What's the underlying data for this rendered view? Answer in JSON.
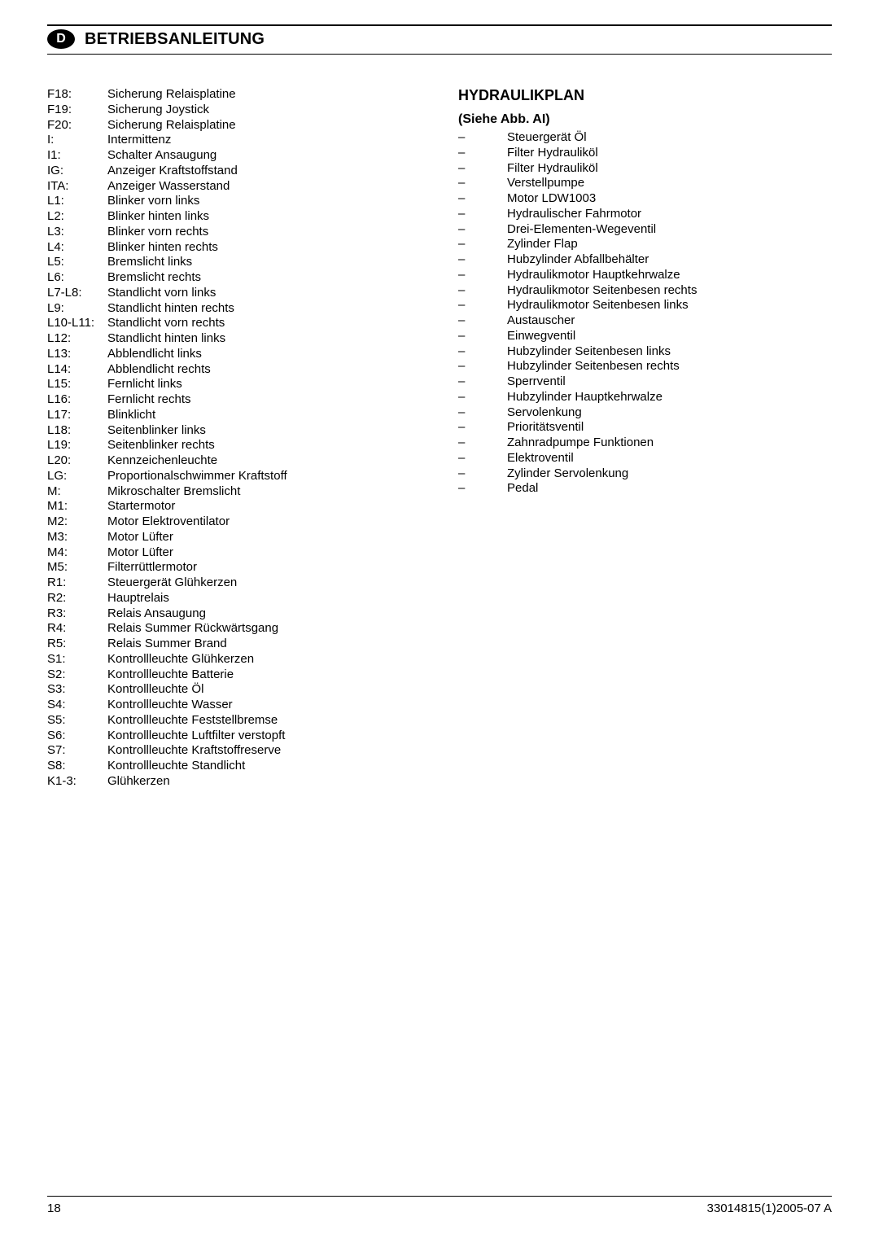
{
  "header": {
    "lang_letter": "D",
    "title": "BETRIEBSANLEITUNG"
  },
  "left_legend": [
    {
      "key": "F18:",
      "val": "Sicherung Relaisplatine"
    },
    {
      "key": "F19:",
      "val": "Sicherung Joystick"
    },
    {
      "key": "F20:",
      "val": "Sicherung Relaisplatine"
    },
    {
      "key": "I:",
      "val": "Intermittenz"
    },
    {
      "key": "I1:",
      "val": "Schalter Ansaugung"
    },
    {
      "key": "IG:",
      "val": "Anzeiger Kraftstoffstand"
    },
    {
      "key": "ITA:",
      "val": "Anzeiger Wasserstand"
    },
    {
      "key": "L1:",
      "val": "Blinker vorn links"
    },
    {
      "key": "L2:",
      "val": "Blinker hinten links"
    },
    {
      "key": "L3:",
      "val": "Blinker vorn rechts"
    },
    {
      "key": "L4:",
      "val": "Blinker hinten rechts"
    },
    {
      "key": "L5:",
      "val": "Bremslicht links"
    },
    {
      "key": "L6:",
      "val": "Bremslicht rechts"
    },
    {
      "key": "L7-L8:",
      "val": "Standlicht vorn links"
    },
    {
      "key": "L9:",
      "val": "Standlicht hinten rechts"
    },
    {
      "key": "L10-L11:",
      "val": "Standlicht vorn rechts"
    },
    {
      "key": "L12:",
      "val": "Standlicht hinten links"
    },
    {
      "key": "L13:",
      "val": "Abblendlicht links"
    },
    {
      "key": "L14:",
      "val": "Abblendlicht rechts"
    },
    {
      "key": "L15:",
      "val": "Fernlicht links"
    },
    {
      "key": "L16:",
      "val": "Fernlicht rechts"
    },
    {
      "key": "L17:",
      "val": "Blinklicht"
    },
    {
      "key": "L18:",
      "val": "Seitenblinker links"
    },
    {
      "key": "L19:",
      "val": "Seitenblinker rechts"
    },
    {
      "key": "L20:",
      "val": "Kennzeichenleuchte"
    },
    {
      "key": "LG:",
      "val": "Proportionalschwimmer Kraftstoff"
    },
    {
      "key": "M:",
      "val": "Mikroschalter Bremslicht"
    },
    {
      "key": "M1:",
      "val": "Startermotor"
    },
    {
      "key": "M2:",
      "val": "Motor Elektroventilator"
    },
    {
      "key": "M3:",
      "val": "Motor Lüfter"
    },
    {
      "key": "M4:",
      "val": "Motor Lüfter"
    },
    {
      "key": "M5:",
      "val": "Filterrüttlermotor"
    },
    {
      "key": "R1:",
      "val": "Steuergerät Glühkerzen"
    },
    {
      "key": "R2:",
      "val": "Hauptrelais"
    },
    {
      "key": "R3:",
      "val": "Relais Ansaugung"
    },
    {
      "key": "R4:",
      "val": "Relais Summer Rückwärtsgang"
    },
    {
      "key": "R5:",
      "val": "Relais Summer Brand"
    },
    {
      "key": "S1:",
      "val": "Kontrollleuchte Glühkerzen"
    },
    {
      "key": "S2:",
      "val": "Kontrollleuchte Batterie"
    },
    {
      "key": "S3:",
      "val": "Kontrollleuchte Öl"
    },
    {
      "key": "S4:",
      "val": "Kontrollleuchte Wasser"
    },
    {
      "key": "S5:",
      "val": "Kontrollleuchte Feststellbremse"
    },
    {
      "key": "S6:",
      "val": "Kontrollleuchte Luftfilter verstopft"
    },
    {
      "key": "S7:",
      "val": "Kontrollleuchte Kraftstoffreserve"
    },
    {
      "key": "S8:",
      "val": "Kontrollleuchte Standlicht"
    },
    {
      "key": "K1-3:",
      "val": "Glühkerzen"
    }
  ],
  "right": {
    "title": "HYDRAULIKPLAN",
    "subtitle": "(Siehe Abb. AI)",
    "items": [
      "Steuergerät Öl",
      "Filter Hydrauliköl",
      "Filter Hydrauliköl",
      "Verstellpumpe",
      "Motor LDW1003",
      "Hydraulischer Fahrmotor",
      "Drei-Elementen-Wegeventil",
      "Zylinder Flap",
      "Hubzylinder Abfallbehälter",
      "Hydraulikmotor Hauptkehrwalze",
      "Hydraulikmotor Seitenbesen rechts",
      "Hydraulikmotor Seitenbesen links",
      "Austauscher",
      "Einwegventil",
      "Hubzylinder Seitenbesen links",
      "Hubzylinder Seitenbesen rechts",
      "Sperrventil",
      "Hubzylinder Hauptkehrwalze",
      "Servolenkung",
      "Prioritätsventil",
      "Zahnradpumpe Funktionen",
      "Elektroventil",
      "Zylinder Servolenkung",
      "Pedal"
    ]
  },
  "footer": {
    "page_number": "18",
    "doc_code": "33014815(1)2005-07 A"
  }
}
